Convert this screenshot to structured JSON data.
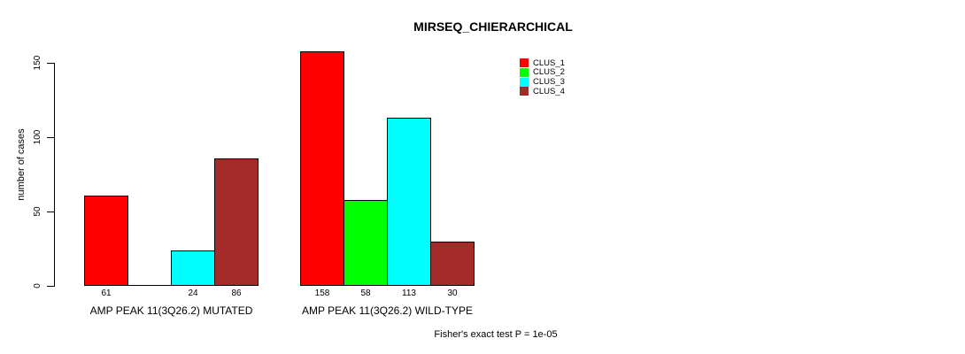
{
  "chart_data": {
    "type": "bar",
    "title": "MIRSEQ_CHIERARCHICAL",
    "xlabel": "",
    "ylabel": "number of cases",
    "ylim": [
      0,
      150
    ],
    "yticks": [
      0,
      50,
      100,
      150
    ],
    "grid": false,
    "legend_position": "top-right",
    "categories": [
      "AMP PEAK 11(3Q26.2) MUTATED",
      "AMP PEAK 11(3Q26.2) WILD-TYPE"
    ],
    "series": [
      {
        "name": "CLUS_1",
        "color": "#ff0000",
        "values": [
          61,
          158
        ]
      },
      {
        "name": "CLUS_2",
        "color": "#00ff00",
        "values": [
          0,
          58
        ]
      },
      {
        "name": "CLUS_3",
        "color": "#00ffff",
        "values": [
          24,
          113
        ]
      },
      {
        "name": "CLUS_4",
        "color": "#a52a2a",
        "values": [
          86,
          30
        ]
      }
    ],
    "bar_value_labels": [
      [
        "61",
        "",
        "24",
        "86"
      ],
      [
        "158",
        "58",
        "113",
        "30"
      ]
    ],
    "annotation": "Fisher's exact test P = 1e-05"
  }
}
